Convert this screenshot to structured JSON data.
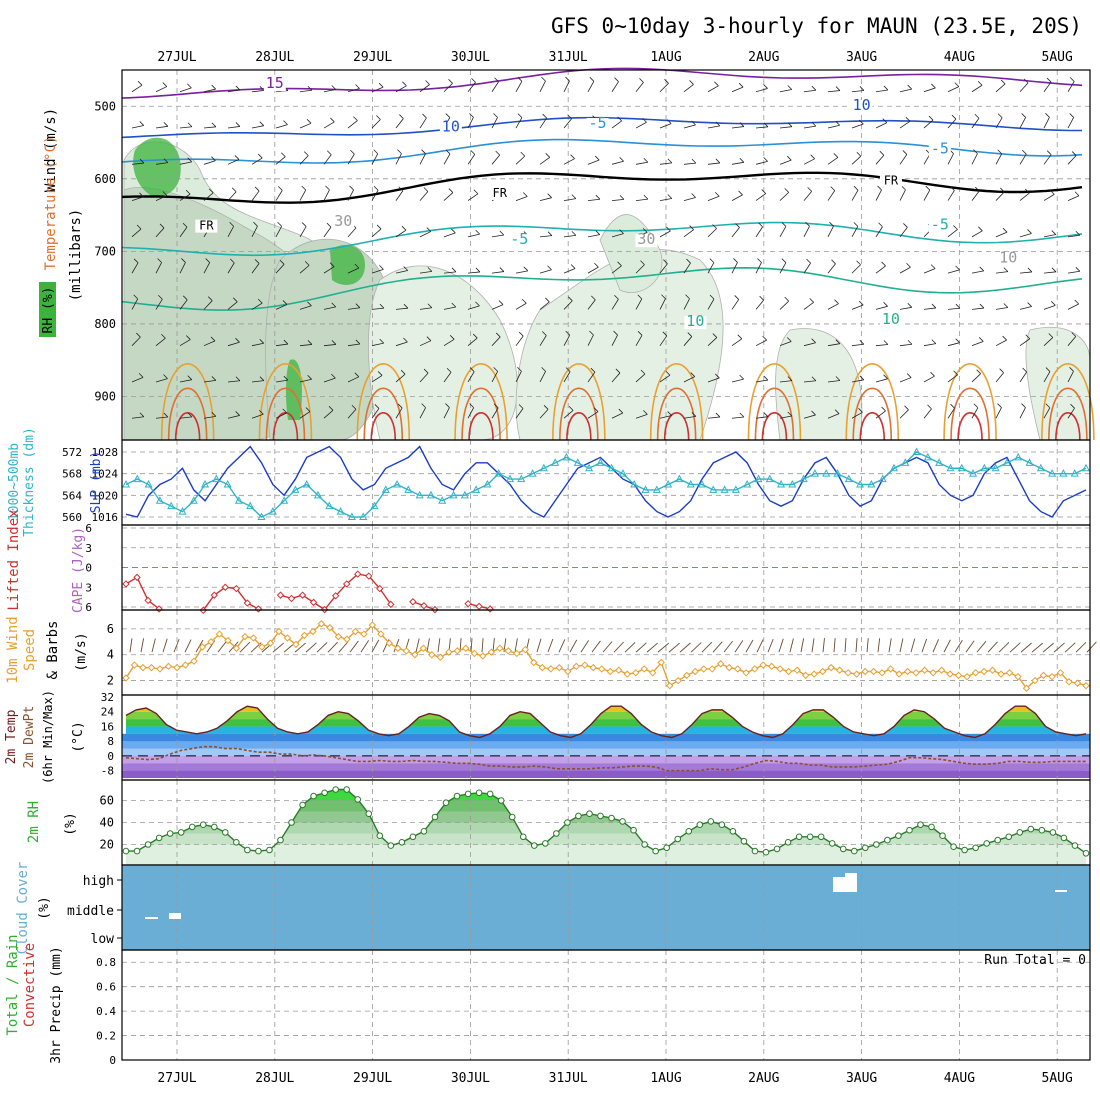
{
  "title": "GFS 0~10day 3-hourly for MAUN (23.5E, 20S)",
  "date_labels": [
    "27JUL",
    "28JUL",
    "29JUL",
    "30JUL",
    "31JUL",
    "1AUG",
    "2AUG",
    "3AUG",
    "4AUG",
    "5AUG"
  ],
  "colors": {
    "rh_green": "#3cb43c",
    "temp_contour": "#e07030",
    "freeze": "#000000",
    "slp": "#1a3cc8",
    "thickness": "#30b4c8",
    "lifted": "#d03030",
    "cape": "#b060c0",
    "wind10": "#e8a030",
    "cloud": "#6aaed6",
    "rain_total": "#30b030",
    "rain_conv": "#d03030"
  },
  "chart_data": [
    {
      "type": "heatmap",
      "panel": "upper-air",
      "ylabel_left_colored": [
        "RH (%)",
        "Temperature (°C)",
        "Wind (m/s)"
      ],
      "ylabel_axis": "(millibars)",
      "yticks": [
        "500",
        "600",
        "700",
        "800",
        "900"
      ],
      "ylim": [
        960,
        450
      ],
      "contour_labels": [
        {
          "text": "15",
          "day": 1.0,
          "mb": 475,
          "color": "#7a1fa0"
        },
        {
          "text": "10",
          "day": 2.8,
          "mb": 535,
          "color": "#2050c8"
        },
        {
          "text": "-5",
          "day": 4.3,
          "mb": 530,
          "color": "#2a90d8"
        },
        {
          "text": "10",
          "day": 7.0,
          "mb": 505,
          "color": "#2050c8"
        },
        {
          "text": "-5",
          "day": 7.8,
          "mb": 565,
          "color": "#2a90d8"
        },
        {
          "text": "FR",
          "day": 0.3,
          "mb": 670,
          "color": "#000000"
        },
        {
          "text": "FR",
          "day": 3.3,
          "mb": 625,
          "color": "#000000"
        },
        {
          "text": "FR",
          "day": 7.3,
          "mb": 608,
          "color": "#000000"
        },
        {
          "text": "-5",
          "day": 3.5,
          "mb": 690,
          "color": "#20b0b0"
        },
        {
          "text": "-5",
          "day": 7.8,
          "mb": 670,
          "color": "#20b0b0"
        },
        {
          "text": "10",
          "day": 5.3,
          "mb": 803,
          "color": "#20b090"
        },
        {
          "text": "10",
          "day": 7.3,
          "mb": 800,
          "color": "#20b090"
        },
        {
          "text": "30",
          "day": 1.7,
          "mb": 665,
          "color": "#999999"
        },
        {
          "text": "30",
          "day": 4.8,
          "mb": 690,
          "color": "#999999"
        },
        {
          "text": "10",
          "day": 8.5,
          "mb": 715,
          "color": "#999999"
        }
      ]
    },
    {
      "type": "line",
      "panel": "slp-thickness",
      "ylabel_left": "1000~500mb Thickness (dm)",
      "ylabel_right": "SLP (mb)",
      "left_ticks": [
        "572",
        "568",
        "564",
        "560"
      ],
      "right_ticks": [
        "1028",
        "1024",
        "1020",
        "1016"
      ],
      "series": [
        {
          "name": "SLP (mb)",
          "values": [
            1016.5,
            1016,
            1020,
            1022,
            1023,
            1025,
            1021,
            1019,
            1022,
            1025,
            1027,
            1029,
            1026,
            1022,
            1020,
            1023,
            1027,
            1028,
            1029,
            1027,
            1023,
            1021,
            1022,
            1025,
            1026,
            1027,
            1029,
            1025,
            1022,
            1021,
            1024,
            1026,
            1026,
            1024,
            1022,
            1019,
            1017,
            1016,
            1019,
            1022,
            1025,
            1026,
            1027,
            1025,
            1023,
            1022,
            1019,
            1017,
            1016,
            1017,
            1019,
            1023,
            1026,
            1027,
            1028,
            1026,
            1022,
            1019,
            1018,
            1019,
            1023,
            1026,
            1027,
            1024,
            1020,
            1018,
            1019,
            1023,
            1025,
            1026,
            1027,
            1026,
            1022,
            1020,
            1019,
            1020,
            1024,
            1026,
            1027,
            1023,
            1019,
            1017,
            1016,
            1019,
            1020,
            1021
          ]
        },
        {
          "name": "1000-500mb Thickness (dm)",
          "values": [
            566,
            567,
            566,
            563,
            562,
            561,
            563,
            566,
            567,
            566,
            563,
            562,
            560,
            561,
            563,
            565,
            566,
            564,
            562,
            561,
            560,
            560,
            562,
            565,
            566,
            565,
            564,
            564,
            563,
            564,
            564,
            565,
            566,
            568,
            567,
            567,
            568,
            569,
            570,
            571,
            570,
            569,
            570,
            569,
            568,
            566,
            565,
            565,
            566,
            567,
            566,
            566,
            565,
            565,
            565,
            566,
            567,
            567,
            566,
            566,
            567,
            568,
            568,
            568,
            567,
            566,
            566,
            567,
            569,
            570,
            572,
            571,
            570,
            569,
            569,
            568,
            569,
            569,
            570,
            571,
            570,
            569,
            568,
            568,
            568,
            569
          ]
        }
      ]
    },
    {
      "type": "line",
      "panel": "lifted-cape",
      "ylabel_left": "Lifted Index",
      "ylabel_right": "CAPE (J/kg)",
      "yticks": [
        "-6",
        "-3",
        "0",
        "3",
        "6"
      ],
      "series": [
        {
          "name": "Lifted Index",
          "segments": [
            {
              "start": 0,
              "values": [
                2.5,
                1.5,
                5,
                6.3
              ]
            },
            {
              "start": 7,
              "values": [
                6.5,
                4.2,
                3,
                3.2,
                5.4,
                6.3
              ]
            },
            {
              "start": 14,
              "values": [
                4.2,
                4.7,
                4.2,
                5.3,
                6.4,
                4.3,
                2.5,
                1,
                1.3,
                3.2,
                5.6
              ]
            },
            {
              "start": 26,
              "values": [
                5.2,
                5.8,
                6.4
              ]
            },
            {
              "start": 31,
              "values": [
                5.5,
                5.9,
                6.3
              ]
            }
          ]
        }
      ]
    },
    {
      "type": "line",
      "panel": "wind10",
      "ylabel_left": "10m Wind Speed & Barbs",
      "ylabel_unit": "(m/s)",
      "yticks": [
        "2",
        "4",
        "6"
      ],
      "series": [
        {
          "name": "10m Wind Speed (m/s)",
          "values": [
            2.2,
            3.2,
            3.0,
            3.0,
            2.9,
            3.1,
            3.0,
            3.2,
            3.5,
            4.6,
            5.0,
            5.6,
            5.1,
            4.5,
            5.4,
            5.3,
            4.6,
            4.9,
            5.8,
            5.3,
            4.8,
            5.5,
            5.8,
            6.4,
            6.1,
            5.4,
            5.2,
            5.8,
            5.6,
            6.3,
            5.6,
            4.9,
            4.5,
            4.3,
            4.0,
            4.5,
            4.0,
            3.8,
            4.2,
            4.3,
            4.5,
            4.1,
            3.9,
            4.2,
            4.5,
            4.3,
            4.1,
            4.4,
            3.4,
            3.0,
            2.9,
            3.0,
            2.7,
            3.1,
            3.2,
            3.0,
            2.9,
            2.7,
            2.8,
            2.5,
            2.6,
            2.9,
            2.6,
            3.4,
            1.6,
            2.0,
            2.4,
            2.7,
            2.9,
            2.9,
            3.3,
            3.0,
            2.9,
            2.6,
            2.9,
            3.2,
            3.1,
            2.9,
            2.7,
            2.8,
            2.4,
            2.5,
            2.7,
            3.0,
            2.8,
            2.6,
            2.5,
            2.7,
            2.7,
            2.6,
            2.9,
            2.5,
            2.7,
            2.6,
            2.8,
            2.6,
            2.8,
            2.5,
            2.4,
            2.3,
            2.6,
            2.7,
            2.8,
            2.5,
            2.6,
            2.3,
            1.4,
            2.0,
            2.4,
            2.3,
            2.6,
            1.9,
            1.8,
            1.6
          ]
        }
      ]
    },
    {
      "type": "area",
      "panel": "temp2m",
      "ylabel_lines": [
        "2m Temp",
        "2m DewPt",
        "(6hr Min/Max)"
      ],
      "ylabel_unit": "(°C)",
      "yticks": [
        "32",
        "24",
        "16",
        "8",
        "0",
        "-8"
      ],
      "series": [
        {
          "name": "2m Temp (°C)",
          "values": [
            22,
            25,
            26,
            23,
            17,
            14,
            13,
            12,
            13,
            15,
            19,
            24,
            27,
            26,
            20,
            15,
            13,
            12,
            13,
            17,
            22,
            24,
            23,
            19,
            14,
            12,
            11,
            12,
            16,
            21,
            23,
            22,
            19,
            13,
            11,
            10,
            12,
            16,
            22,
            24,
            23,
            18,
            13,
            11,
            10,
            12,
            17,
            23,
            27,
            27,
            23,
            17,
            13,
            11,
            10,
            12,
            17,
            23,
            25,
            25,
            21,
            16,
            13,
            11,
            10,
            12,
            17,
            23,
            25,
            25,
            21,
            16,
            13,
            12,
            11,
            12,
            16,
            22,
            25,
            24,
            20,
            15,
            13,
            11,
            10,
            12,
            17,
            23,
            27,
            27,
            23,
            16,
            13,
            12,
            11,
            12
          ]
        },
        {
          "name": "2m DewPt (°C)",
          "values": [
            -1,
            -1.5,
            -2,
            -1.5,
            1,
            3,
            4,
            5,
            5,
            4,
            4,
            3,
            2,
            2,
            1,
            1,
            0,
            0.5,
            0,
            -1,
            -2,
            -3,
            -3,
            -2.5,
            -3,
            -3,
            -2.5,
            -3,
            -3,
            -3.5,
            -4,
            -4,
            -4.5,
            -5.5,
            -5.5,
            -6,
            -6,
            -5.5,
            -6,
            -7,
            -7,
            -7,
            -7,
            -6.5,
            -6.5,
            -6,
            -5.5,
            -5.5,
            -6,
            -8,
            -8,
            -8,
            -8,
            -7,
            -7.5,
            -7.5,
            -6,
            -4,
            -2.5,
            -3,
            -4,
            -4,
            -5,
            -5,
            -6,
            -6,
            -6,
            -5.5,
            -5,
            -4.5,
            -3,
            -1,
            -1,
            -1.5,
            -2,
            -3,
            -4,
            -4.5,
            -4.5,
            -4,
            -3,
            -3,
            -3.5,
            -3.5,
            -3,
            -3,
            -3,
            -3
          ]
        }
      ]
    },
    {
      "type": "area",
      "panel": "rh2m",
      "ylabel_left": "2m RH",
      "ylabel_unit": "(%)",
      "yticks": [
        "20",
        "40",
        "60"
      ],
      "series": [
        {
          "name": "2m RH (%)",
          "values": [
            14,
            14,
            20,
            26,
            30,
            31,
            36,
            38,
            36,
            31,
            22,
            15,
            14,
            15,
            24,
            40,
            56,
            64,
            67,
            70,
            70,
            61,
            48,
            28,
            19,
            22,
            27,
            32,
            45,
            58,
            64,
            66,
            67,
            66,
            60,
            45,
            27,
            19,
            21,
            30,
            40,
            46,
            48,
            46,
            44,
            41,
            33,
            20,
            14,
            17,
            25,
            32,
            38,
            41,
            38,
            32,
            23,
            14,
            13,
            16,
            22,
            27,
            27,
            27,
            21,
            16,
            14,
            17,
            20,
            24,
            28,
            33,
            38,
            36,
            28,
            18,
            15,
            17,
            21,
            24,
            27,
            31,
            34,
            33,
            31,
            26,
            19,
            12
          ]
        }
      ]
    },
    {
      "type": "bar",
      "panel": "cloud",
      "ylabel_left": "Cloud Cover",
      "ylabel_unit": "(%)",
      "levels": [
        "high",
        "middle",
        "low"
      ]
    },
    {
      "type": "bar",
      "panel": "precip",
      "ylabel_left_lines": [
        "Total / Rain",
        "Convective"
      ],
      "ylabel_unit": "3hr Precip (mm)",
      "yticks": [
        "0",
        "0.2",
        "0.4",
        "0.6",
        "0.8"
      ],
      "ylim": [
        0,
        0.9
      ],
      "run_total_label": "Run Total = 0",
      "values": []
    }
  ]
}
